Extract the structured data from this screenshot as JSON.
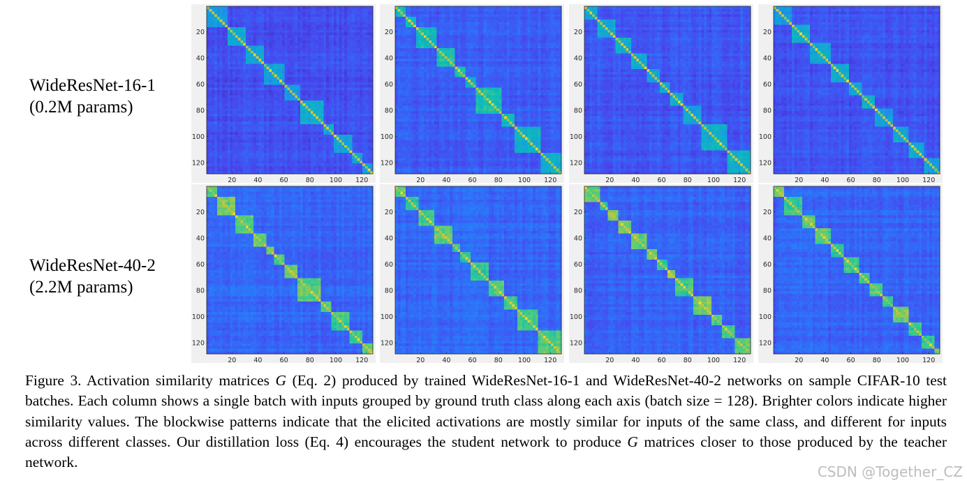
{
  "row_labels": [
    {
      "line1": "WideResNet-16-1",
      "line2": "(0.2M params)"
    },
    {
      "line1": "WideResNet-40-2",
      "line2": "(2.2M params)"
    }
  ],
  "chart_data": {
    "type": "heatmap",
    "panel_count": 8,
    "grid": [
      2,
      4
    ],
    "matrix_size": 128,
    "xlim": [
      1,
      128
    ],
    "ylim": [
      1,
      128
    ],
    "x_ticks": [
      "20",
      "40",
      "60",
      "80",
      "100",
      "120"
    ],
    "y_ticks": [
      "20",
      "40",
      "60",
      "80",
      "100",
      "120"
    ],
    "colormap": "parula",
    "colors": {
      "low": "#3e26a8",
      "mid": "#1fa0e0",
      "high": "#f9fb0e"
    }
  },
  "caption": {
    "figure_label": "Figure 3.",
    "text_before_G": "Activation similarity matrices",
    "G_symbol": "G",
    "text_after_G": "(Eq.  2) produced by trained WideResNet-16-1 and WideResNet-40-2 networks on sample CIFAR-10 test batches. Each column shows a single batch with inputs grouped by ground truth class along each axis (batch size = 128). Brighter colors indicate higher similarity values. The blockwise patterns indicate that the elicited activations are mostly similar for inputs of the same class, and different for inputs across different classes. Our distillation loss (Eq. 4) encourages the student network to produce",
    "G_symbol_2": "G",
    "text_end": "matrices closer to those produced by the teacher network."
  },
  "watermark": "CSDN @Together_CZ"
}
